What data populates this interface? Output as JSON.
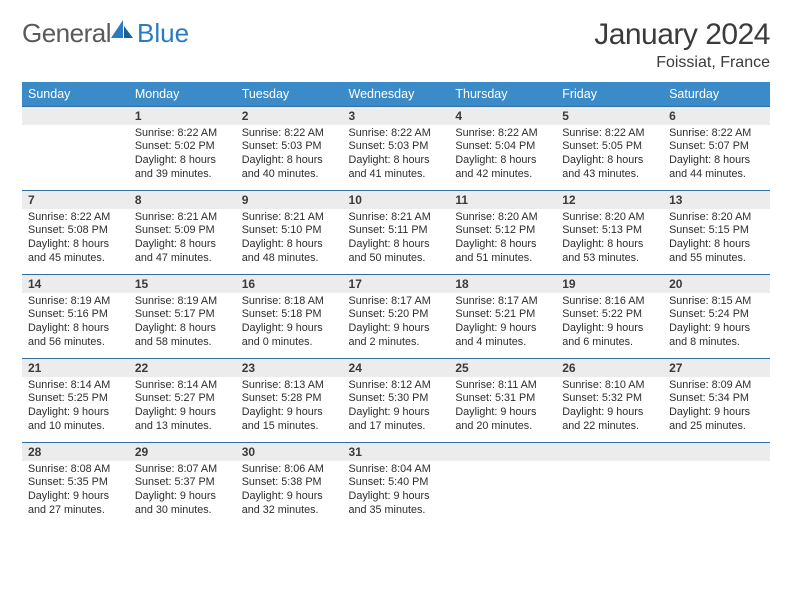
{
  "brand": {
    "textA": "General",
    "textB": "Blue"
  },
  "header": {
    "title": "January 2024",
    "location": "Foissiat, France"
  },
  "colors": {
    "headerBar": "#3b8bc9",
    "dayBorder": "#2f6fa3",
    "dayNumBg": "#ececec"
  },
  "dow": [
    "Sunday",
    "Monday",
    "Tuesday",
    "Wednesday",
    "Thursday",
    "Friday",
    "Saturday"
  ],
  "weeks": [
    [
      null,
      {
        "n": "1",
        "sr": "Sunrise: 8:22 AM",
        "ss": "Sunset: 5:02 PM",
        "d1": "Daylight: 8 hours",
        "d2": "and 39 minutes."
      },
      {
        "n": "2",
        "sr": "Sunrise: 8:22 AM",
        "ss": "Sunset: 5:03 PM",
        "d1": "Daylight: 8 hours",
        "d2": "and 40 minutes."
      },
      {
        "n": "3",
        "sr": "Sunrise: 8:22 AM",
        "ss": "Sunset: 5:03 PM",
        "d1": "Daylight: 8 hours",
        "d2": "and 41 minutes."
      },
      {
        "n": "4",
        "sr": "Sunrise: 8:22 AM",
        "ss": "Sunset: 5:04 PM",
        "d1": "Daylight: 8 hours",
        "d2": "and 42 minutes."
      },
      {
        "n": "5",
        "sr": "Sunrise: 8:22 AM",
        "ss": "Sunset: 5:05 PM",
        "d1": "Daylight: 8 hours",
        "d2": "and 43 minutes."
      },
      {
        "n": "6",
        "sr": "Sunrise: 8:22 AM",
        "ss": "Sunset: 5:07 PM",
        "d1": "Daylight: 8 hours",
        "d2": "and 44 minutes."
      }
    ],
    [
      {
        "n": "7",
        "sr": "Sunrise: 8:22 AM",
        "ss": "Sunset: 5:08 PM",
        "d1": "Daylight: 8 hours",
        "d2": "and 45 minutes."
      },
      {
        "n": "8",
        "sr": "Sunrise: 8:21 AM",
        "ss": "Sunset: 5:09 PM",
        "d1": "Daylight: 8 hours",
        "d2": "and 47 minutes."
      },
      {
        "n": "9",
        "sr": "Sunrise: 8:21 AM",
        "ss": "Sunset: 5:10 PM",
        "d1": "Daylight: 8 hours",
        "d2": "and 48 minutes."
      },
      {
        "n": "10",
        "sr": "Sunrise: 8:21 AM",
        "ss": "Sunset: 5:11 PM",
        "d1": "Daylight: 8 hours",
        "d2": "and 50 minutes."
      },
      {
        "n": "11",
        "sr": "Sunrise: 8:20 AM",
        "ss": "Sunset: 5:12 PM",
        "d1": "Daylight: 8 hours",
        "d2": "and 51 minutes."
      },
      {
        "n": "12",
        "sr": "Sunrise: 8:20 AM",
        "ss": "Sunset: 5:13 PM",
        "d1": "Daylight: 8 hours",
        "d2": "and 53 minutes."
      },
      {
        "n": "13",
        "sr": "Sunrise: 8:20 AM",
        "ss": "Sunset: 5:15 PM",
        "d1": "Daylight: 8 hours",
        "d2": "and 55 minutes."
      }
    ],
    [
      {
        "n": "14",
        "sr": "Sunrise: 8:19 AM",
        "ss": "Sunset: 5:16 PM",
        "d1": "Daylight: 8 hours",
        "d2": "and 56 minutes."
      },
      {
        "n": "15",
        "sr": "Sunrise: 8:19 AM",
        "ss": "Sunset: 5:17 PM",
        "d1": "Daylight: 8 hours",
        "d2": "and 58 minutes."
      },
      {
        "n": "16",
        "sr": "Sunrise: 8:18 AM",
        "ss": "Sunset: 5:18 PM",
        "d1": "Daylight: 9 hours",
        "d2": "and 0 minutes."
      },
      {
        "n": "17",
        "sr": "Sunrise: 8:17 AM",
        "ss": "Sunset: 5:20 PM",
        "d1": "Daylight: 9 hours",
        "d2": "and 2 minutes."
      },
      {
        "n": "18",
        "sr": "Sunrise: 8:17 AM",
        "ss": "Sunset: 5:21 PM",
        "d1": "Daylight: 9 hours",
        "d2": "and 4 minutes."
      },
      {
        "n": "19",
        "sr": "Sunrise: 8:16 AM",
        "ss": "Sunset: 5:22 PM",
        "d1": "Daylight: 9 hours",
        "d2": "and 6 minutes."
      },
      {
        "n": "20",
        "sr": "Sunrise: 8:15 AM",
        "ss": "Sunset: 5:24 PM",
        "d1": "Daylight: 9 hours",
        "d2": "and 8 minutes."
      }
    ],
    [
      {
        "n": "21",
        "sr": "Sunrise: 8:14 AM",
        "ss": "Sunset: 5:25 PM",
        "d1": "Daylight: 9 hours",
        "d2": "and 10 minutes."
      },
      {
        "n": "22",
        "sr": "Sunrise: 8:14 AM",
        "ss": "Sunset: 5:27 PM",
        "d1": "Daylight: 9 hours",
        "d2": "and 13 minutes."
      },
      {
        "n": "23",
        "sr": "Sunrise: 8:13 AM",
        "ss": "Sunset: 5:28 PM",
        "d1": "Daylight: 9 hours",
        "d2": "and 15 minutes."
      },
      {
        "n": "24",
        "sr": "Sunrise: 8:12 AM",
        "ss": "Sunset: 5:30 PM",
        "d1": "Daylight: 9 hours",
        "d2": "and 17 minutes."
      },
      {
        "n": "25",
        "sr": "Sunrise: 8:11 AM",
        "ss": "Sunset: 5:31 PM",
        "d1": "Daylight: 9 hours",
        "d2": "and 20 minutes."
      },
      {
        "n": "26",
        "sr": "Sunrise: 8:10 AM",
        "ss": "Sunset: 5:32 PM",
        "d1": "Daylight: 9 hours",
        "d2": "and 22 minutes."
      },
      {
        "n": "27",
        "sr": "Sunrise: 8:09 AM",
        "ss": "Sunset: 5:34 PM",
        "d1": "Daylight: 9 hours",
        "d2": "and 25 minutes."
      }
    ],
    [
      {
        "n": "28",
        "sr": "Sunrise: 8:08 AM",
        "ss": "Sunset: 5:35 PM",
        "d1": "Daylight: 9 hours",
        "d2": "and 27 minutes."
      },
      {
        "n": "29",
        "sr": "Sunrise: 8:07 AM",
        "ss": "Sunset: 5:37 PM",
        "d1": "Daylight: 9 hours",
        "d2": "and 30 minutes."
      },
      {
        "n": "30",
        "sr": "Sunrise: 8:06 AM",
        "ss": "Sunset: 5:38 PM",
        "d1": "Daylight: 9 hours",
        "d2": "and 32 minutes."
      },
      {
        "n": "31",
        "sr": "Sunrise: 8:04 AM",
        "ss": "Sunset: 5:40 PM",
        "d1": "Daylight: 9 hours",
        "d2": "and 35 minutes."
      },
      null,
      null,
      null
    ]
  ]
}
